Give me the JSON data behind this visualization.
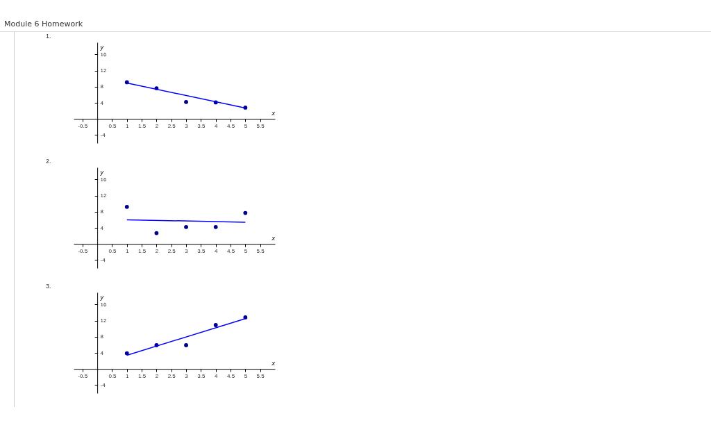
{
  "chart_data": [
    {
      "type": "scatter",
      "title": "1.",
      "annotations": [
        "Module 6 Homework"
      ],
      "xlabel": "x",
      "ylabel": "y",
      "xlim": [
        -0.8,
        6
      ],
      "ylim": [
        -6,
        19
      ],
      "xticks": [
        -0.5,
        0.5,
        1,
        1.5,
        2,
        2.5,
        3,
        3.5,
        4,
        4.5,
        5,
        5.5
      ],
      "yticks": [
        -4,
        4,
        8,
        12,
        16
      ],
      "grid": false,
      "series": [
        {
          "color": "#00008b",
          "marker": "circle",
          "x": [
            1,
            2,
            3,
            4,
            5
          ],
          "values": [
            9.1,
            7.6,
            4.2,
            4.1,
            2.8
          ]
        },
        {
          "type": "line",
          "marker": "none",
          "color": "#0000ff",
          "x": [
            1,
            5
          ],
          "values": [
            8.9,
            2.7
          ]
        }
      ]
    },
    {
      "type": "scatter",
      "title": "2.",
      "xlabel": "x",
      "ylabel": "y",
      "xlim": [
        -0.8,
        6
      ],
      "ylim": [
        -6,
        19
      ],
      "xticks": [
        -0.5,
        0.5,
        1,
        1.5,
        2,
        2.5,
        3,
        3.5,
        4,
        4.5,
        5,
        5.5
      ],
      "yticks": [
        -4,
        4,
        8,
        12,
        16
      ],
      "grid": false,
      "series": [
        {
          "color": "#00008b",
          "marker": "circle",
          "x": [
            1,
            2,
            3,
            4,
            5
          ],
          "values": [
            9.2,
            2.7,
            4.2,
            4.2,
            7.7
          ]
        },
        {
          "type": "line",
          "marker": "none",
          "color": "#0000ff",
          "x": [
            1,
            5
          ],
          "values": [
            6.0,
            5.4
          ]
        }
      ]
    },
    {
      "type": "scatter",
      "title": "3.",
      "xlabel": "x",
      "ylabel": "y",
      "xlim": [
        -0.8,
        6
      ],
      "ylim": [
        -6,
        19
      ],
      "xticks": [
        -0.5,
        0.5,
        1,
        1.5,
        2,
        2.5,
        3,
        3.5,
        4,
        4.5,
        5,
        5.5
      ],
      "yticks": [
        -4,
        4,
        8,
        12,
        16
      ],
      "grid": false,
      "series": [
        {
          "color": "#00008b",
          "marker": "circle",
          "x": [
            1,
            2,
            3,
            4,
            5
          ],
          "values": [
            3.9,
            5.9,
            5.9,
            10.9,
            12.8
          ]
        },
        {
          "type": "line",
          "marker": "none",
          "color": "#0000ff",
          "x": [
            1,
            5
          ],
          "values": [
            3.4,
            12.5
          ]
        }
      ]
    }
  ]
}
